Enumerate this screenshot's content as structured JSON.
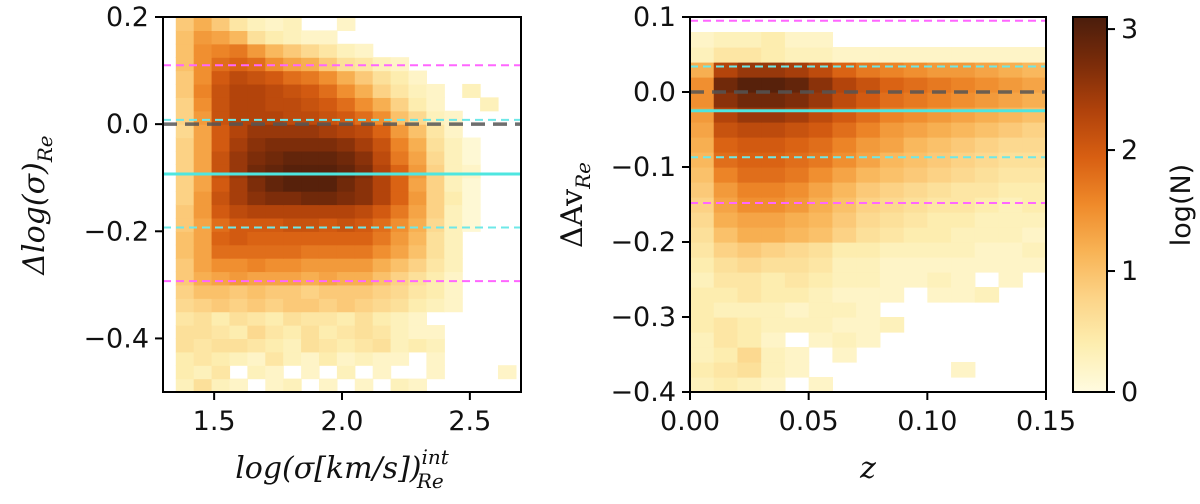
{
  "chart_data": [
    {
      "type": "heatmap",
      "panel": "left",
      "xlabel": "log(σ[km/s])",
      "xlabel_sup": "int",
      "xlabel_sub": "Re",
      "ylabel": "Δlog(σ)",
      "ylabel_sub": "Re",
      "xlim": [
        1.3,
        2.7
      ],
      "ylim": [
        -0.5,
        0.2
      ],
      "xticks": [
        1.5,
        2.0,
        2.5
      ],
      "xtick_labels": [
        "1.5",
        "2.0",
        "2.5"
      ],
      "yticks": [
        -0.4,
        -0.2,
        0.0,
        0.2
      ],
      "ytick_labels": [
        "−0.4",
        "−0.2",
        "0.0",
        "0.2"
      ],
      "x_edges": [
        1.35,
        1.42,
        1.49,
        1.56,
        1.63,
        1.7,
        1.77,
        1.84,
        1.91,
        1.98,
        2.05,
        2.12,
        2.19,
        2.26,
        2.33,
        2.4,
        2.47,
        2.54,
        2.61,
        2.68
      ],
      "y_edges": [
        -0.5,
        -0.475,
        -0.45,
        -0.425,
        -0.4,
        -0.375,
        -0.35,
        -0.325,
        -0.3,
        -0.275,
        -0.25,
        -0.225,
        -0.2,
        -0.175,
        -0.15,
        -0.125,
        -0.1,
        -0.075,
        -0.05,
        -0.025,
        0.0,
        0.025,
        0.05,
        0.075,
        0.1,
        0.125,
        0.15,
        0.175,
        0.2
      ],
      "z": [
        [
          0.3,
          0.6,
          0.3,
          0.2,
          0,
          0.2,
          0.3,
          0,
          0.2,
          0,
          0.2,
          0,
          0.3,
          0.2,
          0,
          0,
          0,
          0,
          0
        ],
        [
          0.4,
          0.3,
          0.5,
          0,
          0.3,
          0.2,
          0,
          0.2,
          0,
          0.3,
          0,
          0.2,
          0,
          0,
          0.2,
          0,
          0,
          0,
          0.2
        ],
        [
          0.4,
          0.5,
          0.4,
          0.3,
          0.2,
          0.5,
          0.3,
          0.2,
          0.4,
          0.2,
          0.3,
          0.2,
          0.2,
          0,
          0.2,
          0,
          0,
          0,
          0
        ],
        [
          0.6,
          0.5,
          0.6,
          0.6,
          0.5,
          0.4,
          0.3,
          0.6,
          0.5,
          0.4,
          0.5,
          0.6,
          0.3,
          0.4,
          0.3,
          0,
          0,
          0,
          0
        ],
        [
          0.6,
          0.6,
          0.5,
          0.4,
          0.7,
          0.5,
          0.4,
          0.6,
          0.4,
          0.5,
          0.6,
          0.5,
          0.3,
          0.2,
          0.2,
          0,
          0,
          0,
          0
        ],
        [
          0.5,
          0.6,
          0.4,
          0.6,
          0.5,
          0.4,
          0.6,
          0.5,
          0.5,
          0.4,
          0.6,
          0.4,
          0.3,
          0.2,
          0,
          0,
          0,
          0,
          0
        ],
        [
          0.7,
          0.8,
          0.9,
          0.8,
          0.9,
          0.8,
          0.9,
          0.9,
          0.8,
          0.9,
          0.8,
          0.7,
          0.6,
          0.4,
          0.3,
          0.2,
          0,
          0,
          0
        ],
        [
          0.8,
          1.0,
          1.0,
          0.9,
          1.0,
          0.9,
          0.9,
          0.8,
          0.9,
          0.9,
          0.9,
          0.8,
          0.7,
          0.5,
          0.4,
          0.2,
          0,
          0,
          0
        ],
        [
          0.9,
          1.2,
          1.3,
          1.4,
          1.3,
          1.3,
          1.3,
          1.2,
          1.3,
          1.2,
          1.2,
          1.0,
          0.8,
          0.6,
          0.4,
          0.2,
          0,
          0,
          0
        ],
        [
          0.9,
          1.3,
          1.5,
          1.5,
          1.6,
          1.5,
          1.5,
          1.4,
          1.4,
          1.4,
          1.4,
          1.2,
          1.0,
          0.8,
          0.5,
          0.3,
          0,
          0,
          0
        ],
        [
          1.0,
          1.3,
          1.8,
          1.8,
          1.8,
          1.8,
          1.8,
          1.7,
          1.7,
          1.7,
          1.7,
          1.5,
          1.3,
          1.0,
          0.6,
          0.3,
          0,
          0,
          0
        ],
        [
          1.0,
          1.3,
          1.9,
          2.0,
          1.9,
          1.9,
          1.9,
          1.9,
          1.9,
          1.9,
          1.9,
          1.7,
          1.4,
          1.1,
          0.6,
          0.3,
          0,
          0,
          0
        ],
        [
          0.9,
          1.3,
          1.8,
          2.0,
          2.0,
          2.0,
          2.1,
          2.1,
          2.0,
          2.1,
          2.0,
          1.8,
          1.5,
          1.2,
          0.7,
          0.3,
          0.1,
          0,
          0
        ],
        [
          0.9,
          1.4,
          2.0,
          2.2,
          2.3,
          2.3,
          2.3,
          2.3,
          2.3,
          2.3,
          2.2,
          2.0,
          1.7,
          1.3,
          0.8,
          0.3,
          0.1,
          0,
          0
        ],
        [
          0.8,
          1.4,
          2.1,
          2.4,
          2.6,
          2.7,
          2.7,
          2.8,
          2.8,
          2.7,
          2.6,
          2.3,
          1.9,
          1.4,
          0.8,
          0.4,
          0.1,
          0,
          0
        ],
        [
          0.8,
          1.3,
          2.0,
          2.4,
          2.7,
          2.9,
          3.0,
          3.0,
          3.0,
          2.8,
          2.6,
          2.3,
          1.9,
          1.3,
          0.8,
          0.3,
          0.1,
          0,
          0
        ],
        [
          0.8,
          1.3,
          2.1,
          2.5,
          2.8,
          2.9,
          3.0,
          3.0,
          3.0,
          2.9,
          2.7,
          2.3,
          1.9,
          1.4,
          0.8,
          0.3,
          0.2,
          0,
          0
        ],
        [
          0.8,
          1.3,
          2.1,
          2.5,
          2.7,
          2.8,
          2.9,
          2.9,
          2.9,
          2.8,
          2.6,
          2.2,
          1.7,
          1.3,
          0.7,
          0.3,
          0.1,
          0,
          0
        ],
        [
          0.8,
          1.3,
          2.0,
          2.4,
          2.6,
          2.7,
          2.7,
          2.7,
          2.7,
          2.6,
          2.4,
          2.1,
          1.6,
          1.2,
          0.6,
          0.3,
          0.1,
          0,
          0
        ],
        [
          0.7,
          1.3,
          2.0,
          2.3,
          2.5,
          2.5,
          2.5,
          2.5,
          2.4,
          2.3,
          2.2,
          1.9,
          1.4,
          1.0,
          0.5,
          0.2,
          0,
          0,
          0
        ],
        [
          0.8,
          1.4,
          2.1,
          2.3,
          2.3,
          2.3,
          2.2,
          2.2,
          2.1,
          2.0,
          1.8,
          1.5,
          1.0,
          0.7,
          0.3,
          0.2,
          0,
          0,
          0
        ],
        [
          0.8,
          1.5,
          2.1,
          2.3,
          2.3,
          2.2,
          2.2,
          2.1,
          2.0,
          1.8,
          1.5,
          1.2,
          0.8,
          0.4,
          0.2,
          0,
          0,
          0.3,
          0
        ],
        [
          0.9,
          1.6,
          2.1,
          2.3,
          2.3,
          2.2,
          2.1,
          2.0,
          1.8,
          1.5,
          1.2,
          0.8,
          0.5,
          0.3,
          0.2,
          0,
          0.3,
          0,
          0
        ],
        [
          0.9,
          1.5,
          2.0,
          2.2,
          2.1,
          2.0,
          1.8,
          1.7,
          1.5,
          1.2,
          0.9,
          0.6,
          0.4,
          0.2,
          0,
          0,
          0,
          0,
          0
        ],
        [
          1.0,
          1.5,
          1.8,
          1.9,
          1.8,
          1.5,
          1.3,
          1.2,
          0.9,
          0.6,
          0.5,
          0.3,
          0.2,
          0,
          0,
          0,
          0,
          0,
          0
        ],
        [
          1.0,
          1.5,
          1.6,
          1.7,
          1.4,
          1.1,
          0.9,
          0.7,
          0.5,
          0.3,
          0.2,
          0,
          0,
          0,
          0,
          0,
          0,
          0,
          0
        ],
        [
          1.0,
          1.4,
          1.3,
          1.1,
          0.6,
          0.4,
          0.3,
          0.2,
          0.2,
          0,
          0,
          0,
          0,
          0,
          0,
          0,
          0,
          0,
          0
        ],
        [
          0.9,
          1.2,
          0.9,
          0.5,
          0.3,
          0.2,
          0.3,
          0,
          0,
          0.2,
          0,
          0,
          0,
          0,
          0,
          0,
          0,
          0,
          0
        ]
      ],
      "hlines": [
        {
          "y": 0.11,
          "color": "#ff66ff",
          "style": "dashed"
        },
        {
          "y": 0.008,
          "color": "#6ee8e8",
          "style": "dashed"
        },
        {
          "y": 0.0,
          "color": "#555555",
          "style": "dashed-thick"
        },
        {
          "y": -0.093,
          "color": "#4ee6e0",
          "style": "solid"
        },
        {
          "y": -0.193,
          "color": "#6ee8e8",
          "style": "dashed"
        },
        {
          "y": -0.293,
          "color": "#ff66ff",
          "style": "dashed"
        }
      ]
    },
    {
      "type": "heatmap",
      "panel": "right",
      "xlabel": "z",
      "ylabel": "ΔAv",
      "ylabel_sub": "Re",
      "xlim": [
        0.0,
        0.15
      ],
      "ylim": [
        -0.4,
        0.1
      ],
      "xticks": [
        0.0,
        0.05,
        0.1,
        0.15
      ],
      "xtick_labels": [
        "0.00",
        "0.05",
        "0.10",
        "0.15"
      ],
      "yticks": [
        -0.4,
        -0.3,
        -0.2,
        -0.1,
        0.0,
        0.1
      ],
      "ytick_labels": [
        "−0.4",
        "−0.3",
        "−0.2",
        "−0.1",
        "0.0",
        "0.1"
      ],
      "x_edges": [
        0.0,
        0.01,
        0.02,
        0.03,
        0.04,
        0.05,
        0.06,
        0.07,
        0.08,
        0.09,
        0.1,
        0.11,
        0.12,
        0.13,
        0.14,
        0.15
      ],
      "y_edges": [
        -0.4,
        -0.38,
        -0.36,
        -0.34,
        -0.32,
        -0.3,
        -0.28,
        -0.26,
        -0.24,
        -0.22,
        -0.2,
        -0.18,
        -0.16,
        -0.14,
        -0.12,
        -0.1,
        -0.08,
        -0.06,
        -0.04,
        -0.02,
        0.0,
        0.02,
        0.04,
        0.06,
        0.08,
        0.1
      ],
      "z": [
        [
          0.3,
          0.4,
          0.3,
          0.2,
          0,
          0.2,
          0,
          0,
          0,
          0,
          0,
          0,
          0,
          0,
          0
        ],
        [
          0.4,
          0.5,
          0.6,
          0.3,
          0.2,
          0,
          0,
          0,
          0,
          0,
          0,
          0.2,
          0,
          0,
          0
        ],
        [
          0.3,
          0.4,
          0.7,
          0.3,
          0.2,
          0,
          0.2,
          0,
          0,
          0,
          0,
          0,
          0,
          0,
          0
        ],
        [
          0.3,
          0.5,
          0.4,
          0.2,
          0,
          0.2,
          0.3,
          0.2,
          0,
          0,
          0,
          0,
          0,
          0,
          0
        ],
        [
          0.4,
          0.5,
          0.4,
          0.3,
          0.3,
          0.3,
          0.2,
          0.2,
          0.3,
          0,
          0,
          0,
          0,
          0,
          0
        ],
        [
          0.4,
          0.3,
          0.3,
          0.3,
          0.2,
          0.3,
          0.3,
          0.2,
          0,
          0,
          0,
          0,
          0,
          0,
          0
        ],
        [
          0.4,
          0.4,
          0.5,
          0.4,
          0.4,
          0.3,
          0.2,
          0.2,
          0.2,
          0,
          0.2,
          0.2,
          0.3,
          0,
          0
        ],
        [
          0.3,
          0.5,
          0.5,
          0.4,
          0.5,
          0.4,
          0.3,
          0.3,
          0.2,
          0.2,
          0.3,
          0.2,
          0,
          0.2,
          0
        ],
        [
          0.4,
          0.6,
          0.7,
          0.6,
          0.6,
          0.5,
          0.3,
          0.3,
          0.2,
          0.2,
          0.2,
          0.2,
          0.2,
          0.2,
          0.2
        ],
        [
          0.5,
          0.8,
          0.9,
          0.8,
          0.7,
          0.6,
          0.4,
          0.4,
          0.3,
          0.3,
          0.3,
          0.3,
          0.2,
          0.2,
          0.3
        ],
        [
          0.6,
          1.0,
          1.2,
          1.2,
          1.1,
          1.0,
          0.8,
          0.6,
          0.5,
          0.4,
          0.4,
          0.3,
          0.3,
          0.3,
          0.2
        ],
        [
          0.7,
          1.2,
          1.3,
          1.3,
          1.2,
          1.1,
          0.9,
          0.7,
          0.6,
          0.5,
          0.4,
          0.4,
          0.3,
          0.3,
          0.3
        ],
        [
          0.8,
          1.3,
          1.5,
          1.5,
          1.4,
          1.2,
          1.0,
          0.8,
          0.7,
          0.6,
          0.5,
          0.5,
          0.4,
          0.3,
          0.4
        ],
        [
          0.9,
          1.4,
          1.6,
          1.6,
          1.5,
          1.3,
          1.1,
          0.9,
          0.8,
          0.7,
          0.6,
          0.5,
          0.5,
          0.4,
          0.4
        ],
        [
          1.0,
          1.6,
          1.8,
          1.8,
          1.7,
          1.5,
          1.3,
          1.1,
          1.0,
          0.9,
          0.8,
          0.7,
          0.6,
          0.5,
          0.5
        ],
        [
          1.1,
          1.8,
          1.9,
          1.9,
          1.8,
          1.7,
          1.5,
          1.3,
          1.1,
          1.0,
          0.9,
          0.8,
          0.7,
          0.6,
          0.6
        ],
        [
          1.2,
          1.9,
          2.0,
          2.0,
          1.9,
          1.8,
          1.6,
          1.4,
          1.3,
          1.1,
          1.0,
          0.9,
          0.8,
          0.7,
          0.7
        ],
        [
          1.3,
          2.1,
          2.2,
          2.2,
          2.1,
          2.0,
          1.8,
          1.6,
          1.4,
          1.3,
          1.2,
          1.1,
          1.0,
          0.9,
          0.8
        ],
        [
          1.4,
          2.3,
          2.5,
          2.5,
          2.4,
          2.2,
          2.0,
          1.8,
          1.6,
          1.5,
          1.4,
          1.3,
          1.2,
          1.1,
          1.0
        ],
        [
          1.5,
          2.6,
          2.8,
          2.8,
          2.7,
          2.5,
          2.2,
          2.0,
          1.8,
          1.7,
          1.6,
          1.5,
          1.4,
          1.3,
          1.2
        ],
        [
          1.5,
          2.8,
          3.0,
          3.0,
          2.9,
          2.6,
          2.3,
          2.1,
          1.9,
          1.8,
          1.7,
          1.6,
          1.5,
          1.4,
          1.3
        ],
        [
          1.2,
          2.3,
          2.5,
          2.5,
          2.4,
          2.2,
          1.9,
          1.7,
          1.6,
          1.5,
          1.4,
          1.4,
          1.3,
          1.2,
          1.1
        ],
        [
          0.3,
          0.5,
          0.5,
          0.4,
          0.3,
          0.3,
          0.2,
          0.2,
          0.2,
          0.2,
          0.2,
          0.2,
          0.2,
          0.2,
          0.2
        ],
        [
          0.2,
          0.3,
          0.3,
          0.4,
          0.2,
          0.2,
          0,
          0,
          0,
          0,
          0,
          0,
          0,
          0,
          0
        ],
        [
          0,
          0,
          0,
          0,
          0,
          0,
          0,
          0,
          0,
          0,
          0,
          0,
          0,
          0,
          0
        ]
      ],
      "hlines": [
        {
          "y": 0.095,
          "color": "#ff66ff",
          "style": "dashed"
        },
        {
          "y": 0.034,
          "color": "#6ee8e8",
          "style": "dashed"
        },
        {
          "y": 0.0,
          "color": "#555555",
          "style": "dashed-thick"
        },
        {
          "y": -0.025,
          "color": "#4ee6e0",
          "style": "solid"
        },
        {
          "y": -0.087,
          "color": "#6ee8e8",
          "style": "dashed"
        },
        {
          "y": -0.148,
          "color": "#ff66ff",
          "style": "dashed"
        }
      ]
    }
  ],
  "colorbar": {
    "label": "log(N)",
    "range": [
      0,
      3.1
    ],
    "ticks": [
      0,
      1,
      2,
      3
    ],
    "tick_labels": [
      "0",
      "1",
      "2",
      "3"
    ],
    "colormap": [
      "#fffbe0",
      "#fdeeb0",
      "#fcd488",
      "#f8b355",
      "#ef8a2a",
      "#d85f12",
      "#b0420b",
      "#7b2c0a",
      "#4a1d0c"
    ]
  }
}
